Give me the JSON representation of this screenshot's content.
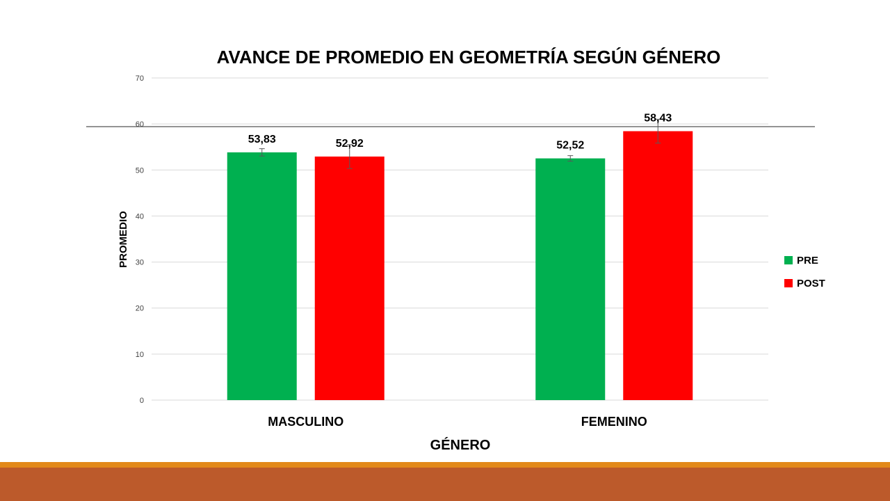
{
  "colors": {
    "pre": "#00B050",
    "post": "#FF0000",
    "footer_top": "#E2891A",
    "footer_main": "#BC5A2B",
    "grid": "#D9D9D9",
    "rule": "#555555"
  },
  "chart_data": {
    "type": "bar",
    "title": "AVANCE DE PROMEDIO EN GEOMETRÍA SEGÚN GÉNERO",
    "xlabel": "GÉNERO",
    "ylabel": "PROMEDIO",
    "ylim": [
      0,
      70
    ],
    "yticks": [
      0,
      10,
      20,
      30,
      40,
      50,
      60,
      70
    ],
    "grid": true,
    "legend_position": "right",
    "categories": [
      "MASCULINO",
      "FEMENINO"
    ],
    "series": [
      {
        "name": "PRE",
        "values": [
          53.83,
          52.52
        ],
        "labels": [
          "53,83",
          "52,52"
        ],
        "error": [
          0.8,
          0.6
        ]
      },
      {
        "name": "POST",
        "values": [
          52.92,
          58.43
        ],
        "labels": [
          "52,92",
          "58,43"
        ],
        "error": [
          2.6,
          2.6
        ]
      }
    ]
  }
}
